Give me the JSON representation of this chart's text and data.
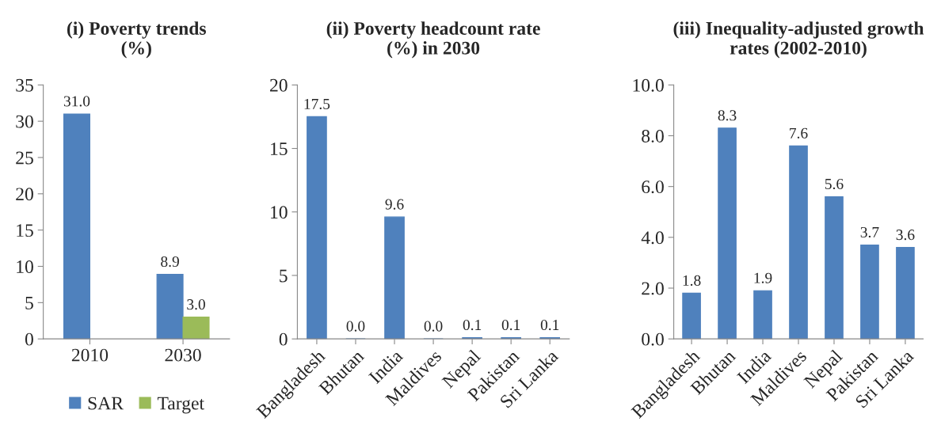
{
  "chart_data": [
    {
      "type": "bar",
      "title": "(i) Poverty trends\n(%)",
      "categories": [
        "2010",
        "2030"
      ],
      "series": [
        {
          "name": "SAR",
          "color": "#4f81bd",
          "values": [
            31.0,
            8.9
          ],
          "value_labels": [
            "31.0",
            "8.9"
          ]
        },
        {
          "name": "Target",
          "color": "#9bbb59",
          "values": [
            null,
            3.0
          ],
          "value_labels": [
            null,
            "3.0"
          ]
        }
      ],
      "ylim": [
        0,
        35
      ],
      "yticks": [
        0,
        5,
        10,
        15,
        20,
        25,
        30,
        35
      ],
      "grid": false,
      "legend": "bottom"
    },
    {
      "type": "bar",
      "title": "(ii) Poverty headcount rate\n(%) in 2030",
      "categories": [
        "Bangladesh",
        "Bhutan",
        "India",
        "Maldives",
        "Nepal",
        "Pakistan",
        "Sri Lanka"
      ],
      "series": [
        {
          "color": "#4f81bd",
          "values": [
            17.5,
            0.0,
            9.6,
            0.0,
            0.1,
            0.1,
            0.1
          ],
          "value_labels": [
            "17.5",
            "0.0",
            "9.6",
            "0.0",
            "0.1",
            "0.1",
            "0.1"
          ]
        }
      ],
      "ylim": [
        0,
        20
      ],
      "yticks": [
        0,
        5,
        10,
        15,
        20
      ],
      "grid": false,
      "legend": false
    },
    {
      "type": "bar",
      "title": "(iii) Inequality-adjusted growth\nrates (2002-2010)",
      "categories": [
        "Bangladesh",
        "Bhutan",
        "India",
        "Maldives",
        "Nepal",
        "Pakistan",
        "Sri Lanka"
      ],
      "series": [
        {
          "color": "#4f81bd",
          "values": [
            1.8,
            8.3,
            1.9,
            7.6,
            5.6,
            3.7,
            3.6
          ],
          "value_labels": [
            "1.8",
            "8.3",
            "1.9",
            "7.6",
            "5.6",
            "3.7",
            "3.6"
          ]
        }
      ],
      "ylim": [
        0,
        10
      ],
      "yticks": [
        {
          "value": 0,
          "label": "0.0"
        },
        {
          "value": 2,
          "label": "2.0"
        },
        {
          "value": 4,
          "label": "4.0"
        },
        {
          "value": 6,
          "label": "6.0"
        },
        {
          "value": 8,
          "label": "8.0"
        },
        {
          "value": 10,
          "label": "10.0"
        }
      ],
      "grid": false,
      "legend": false
    }
  ]
}
